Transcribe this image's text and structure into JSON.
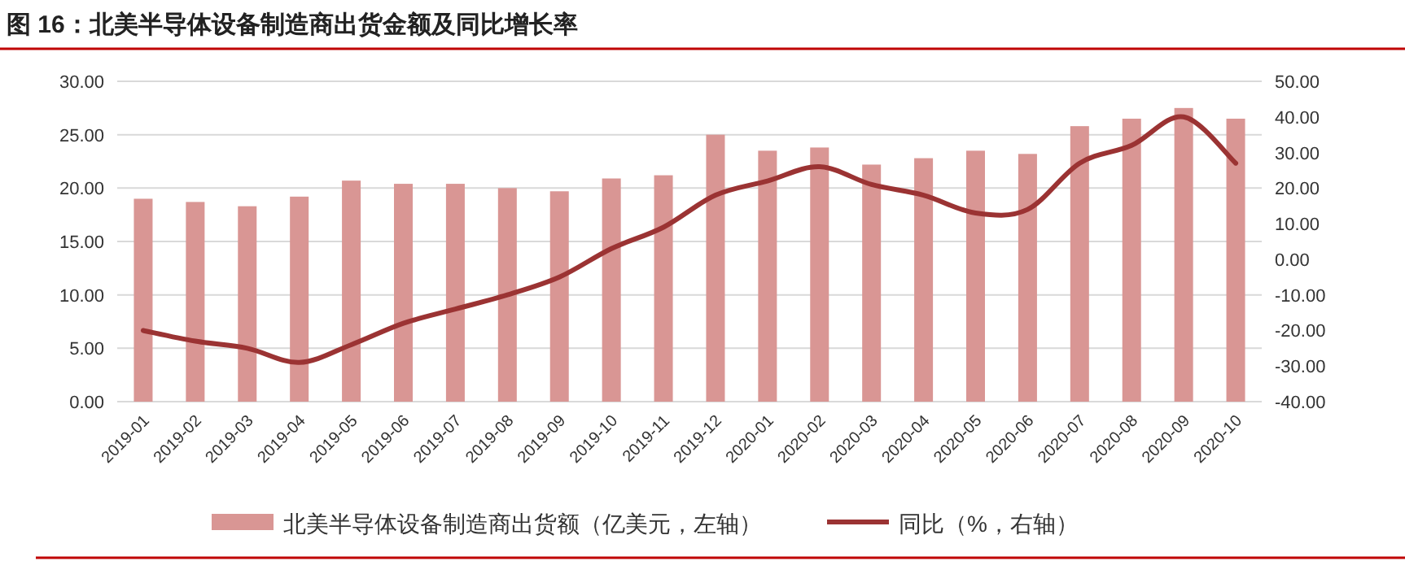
{
  "chart_data": {
    "type": "bar",
    "title": "图 16：北美半导体设备制造商出货金额及同比增长率",
    "categories": [
      "2019-01",
      "2019-02",
      "2019-03",
      "2019-04",
      "2019-05",
      "2019-06",
      "2019-07",
      "2019-08",
      "2019-09",
      "2019-10",
      "2019-11",
      "2019-12",
      "2020-01",
      "2020-02",
      "2020-03",
      "2020-04",
      "2020-05",
      "2020-06",
      "2020-07",
      "2020-08",
      "2020-09",
      "2020-10"
    ],
    "series": [
      {
        "name": "北美半导体设备制造商出货额（亿美元，左轴）",
        "color": "#d99694",
        "values": [
          19.0,
          18.7,
          18.3,
          19.2,
          20.7,
          20.4,
          20.4,
          20.0,
          19.7,
          20.9,
          21.2,
          25.0,
          23.5,
          23.8,
          22.2,
          22.8,
          23.5,
          23.2,
          25.8,
          26.5,
          27.5,
          26.5
        ]
      },
      {
        "name": "同比（%，右轴）",
        "type": "line",
        "axis": "y2",
        "color": "#9b3333",
        "values": [
          -20,
          -23,
          -25,
          -29,
          -24,
          -18,
          -14,
          -10,
          -5,
          3,
          9,
          18,
          22,
          26,
          21,
          18,
          13,
          14,
          27,
          32,
          40,
          27
        ]
      }
    ],
    "ylim": [
      0,
      30
    ],
    "yticks": [
      {
        "value": 0,
        "label": "0.00"
      },
      {
        "value": 5,
        "label": "5.00"
      },
      {
        "value": 10,
        "label": "10.00"
      },
      {
        "value": 15,
        "label": "15.00"
      },
      {
        "value": 20,
        "label": "20.00"
      },
      {
        "value": 25,
        "label": "25.00"
      },
      {
        "value": 30,
        "label": "30.00"
      }
    ],
    "y2lim": [
      -40,
      50
    ],
    "y2ticks": [
      {
        "value": -40,
        "label": "-40.00"
      },
      {
        "value": -30,
        "label": "-30.00"
      },
      {
        "value": -20,
        "label": "-20.00"
      },
      {
        "value": -10,
        "label": "-10.00"
      },
      {
        "value": 0,
        "label": "0.00"
      },
      {
        "value": 10,
        "label": "10.00"
      },
      {
        "value": 20,
        "label": "20.00"
      },
      {
        "value": 30,
        "label": "30.00"
      },
      {
        "value": 40,
        "label": "40.00"
      },
      {
        "value": 50,
        "label": "50.00"
      }
    ],
    "grid": "y",
    "legend": "bottom"
  }
}
